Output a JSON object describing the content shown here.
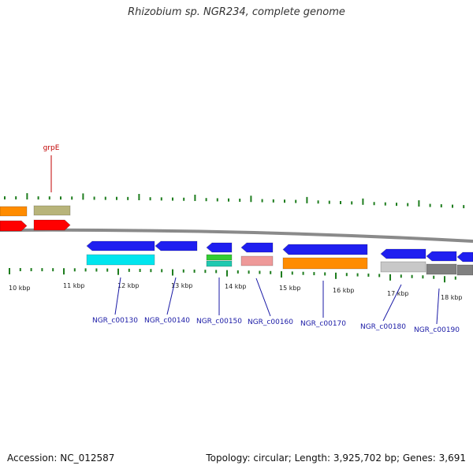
{
  "title": "Rhizobium sp. NGR234, complete genome",
  "footer": {
    "accession": "Accession: NC_012587",
    "summary": "Topology: circular; Length: 3,925,702 bp; Genes: 3,691"
  },
  "colors": {
    "backbone": "#8a8a8a",
    "ticks": "#1e7d1e",
    "gene_label": "#1a1aa6",
    "top_label": "#c00000",
    "blue": "#1f1ff0",
    "orange": "#ff8c00",
    "olive": "#b8b47a",
    "red": "#ff0000",
    "cyan": "#00e5ee",
    "green": "#33cc33",
    "teal": "#20c9b0",
    "pink": "#ee9999",
    "silver": "#c8c8c8",
    "gray": "#808080"
  },
  "kbp_labels": [
    "10 kbp",
    "11 kbp",
    "12 kbp",
    "13 kbp",
    "14 kbp",
    "15 kbp",
    "16 kbp",
    "17 kbp",
    "18 kbp"
  ],
  "top_labels": [
    "grpE"
  ],
  "gene_labels": [
    "NGR_c00130",
    "NGR_c00140",
    "NGR_c00150",
    "NGR_c00160",
    "NGR_c00170",
    "NGR_c00180",
    "NGR_c00190"
  ]
}
